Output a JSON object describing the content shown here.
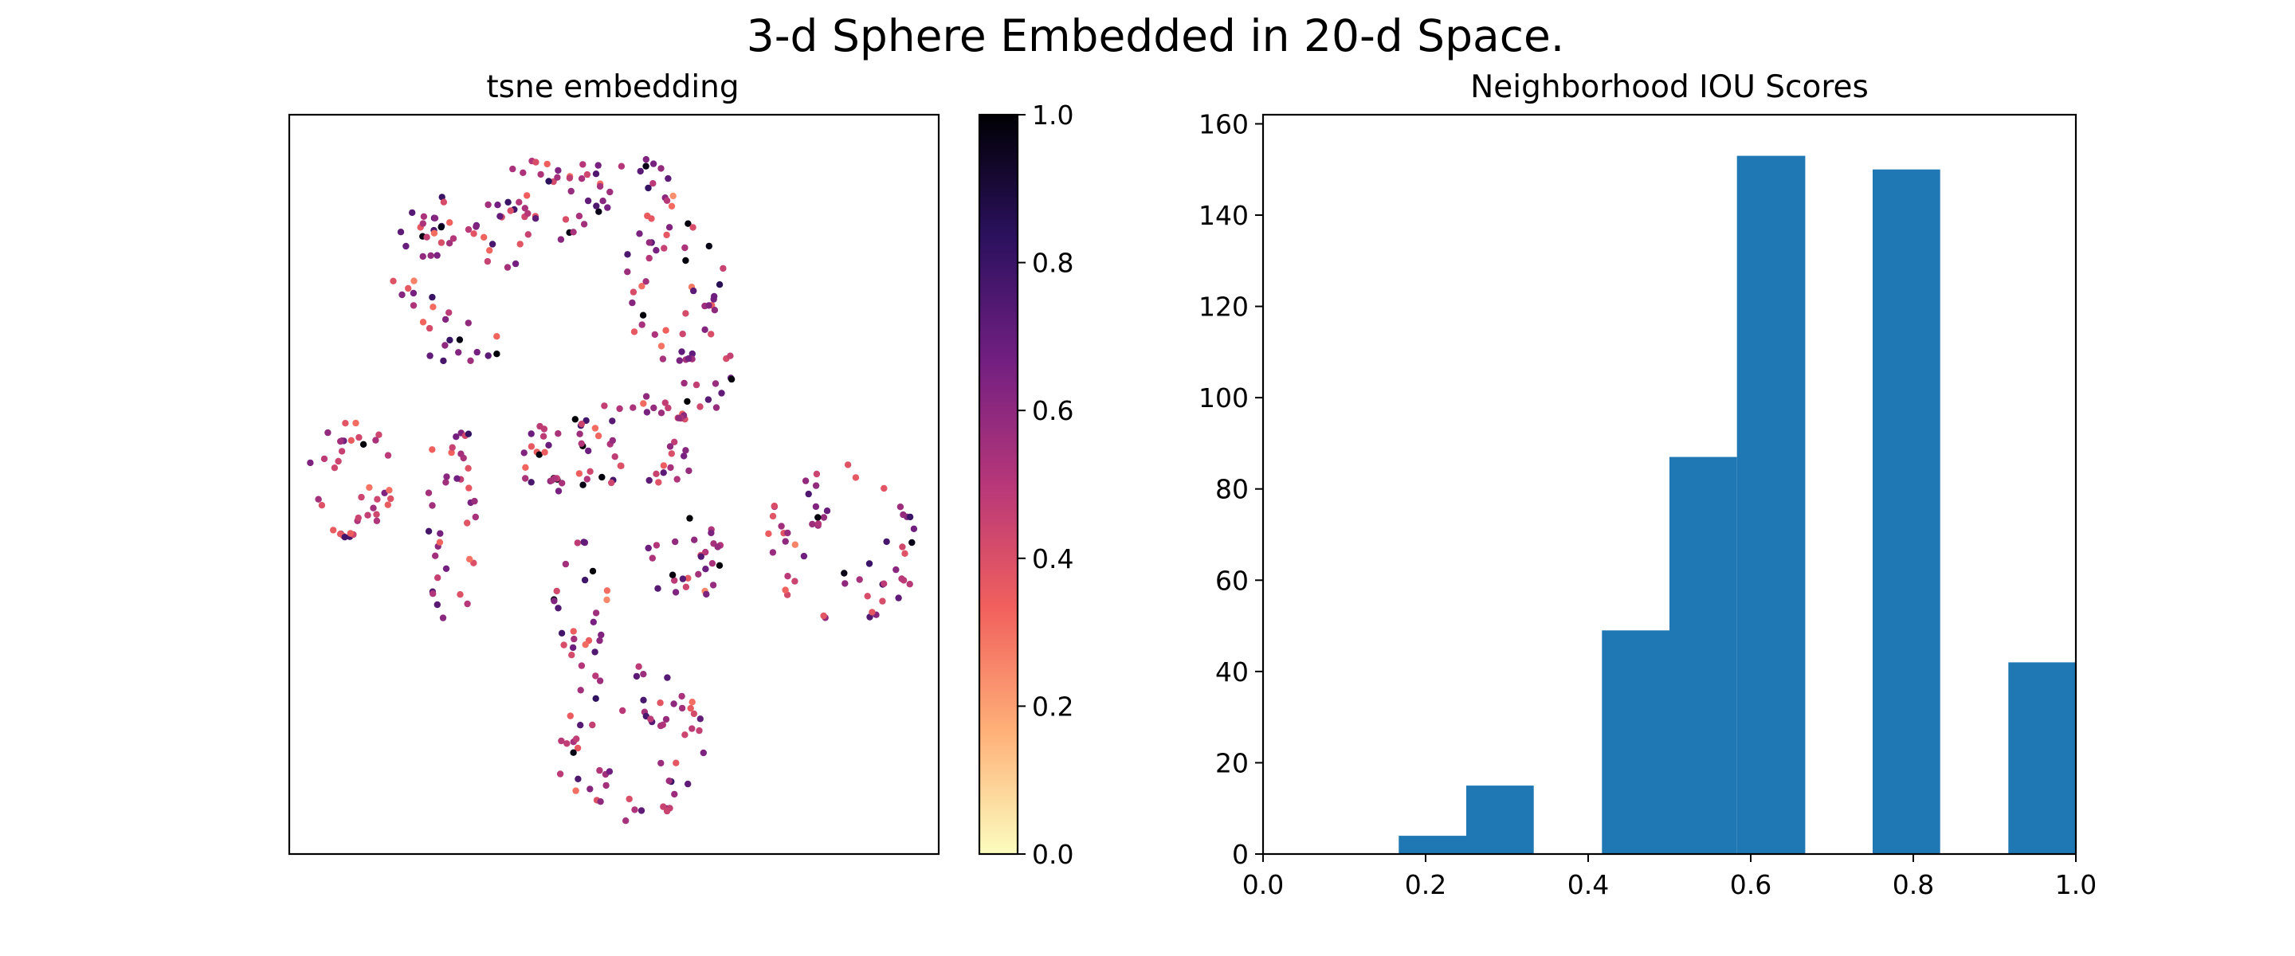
{
  "suptitle": "3-d Sphere Embedded in 20-d Space.",
  "chart_data": [
    {
      "type": "scatter",
      "title": "tsne embedding",
      "xlabel": "",
      "ylabel": "",
      "axes_ticks_visible": false,
      "point_count": 500,
      "colormap": "magma_r",
      "colorbar": {
        "range": [
          0.0,
          1.0
        ],
        "ticks": [
          "0.0",
          "0.2",
          "0.4",
          "0.6",
          "0.8",
          "1.0"
        ],
        "stops": [
          "#fcfdbf",
          "#feb078",
          "#f1605d",
          "#b73779",
          "#721f81",
          "#2c115f",
          "#000004"
        ]
      },
      "note": "Point coordinates (arbitrary t-SNE units) are not readable from the figure; clusters are approximated."
    },
    {
      "type": "histogram",
      "title": "Neighborhood IOU Scores",
      "xlabel": "",
      "ylabel": "",
      "xlim": [
        0.0,
        1.0
      ],
      "ylim": [
        0,
        162
      ],
      "xticks": [
        "0.0",
        "0.2",
        "0.4",
        "0.6",
        "0.8",
        "1.0"
      ],
      "yticks": [
        "0",
        "20",
        "40",
        "60",
        "80",
        "100",
        "120",
        "140",
        "160"
      ],
      "bar_color": "#1f77b4",
      "bins": [
        {
          "x0": 0.0,
          "x1": 0.083,
          "count": 0
        },
        {
          "x0": 0.083,
          "x1": 0.167,
          "count": 0
        },
        {
          "x0": 0.167,
          "x1": 0.25,
          "count": 4
        },
        {
          "x0": 0.25,
          "x1": 0.333,
          "count": 15
        },
        {
          "x0": 0.333,
          "x1": 0.417,
          "count": 0
        },
        {
          "x0": 0.417,
          "x1": 0.5,
          "count": 49
        },
        {
          "x0": 0.5,
          "x1": 0.583,
          "count": 87
        },
        {
          "x0": 0.583,
          "x1": 0.667,
          "count": 153
        },
        {
          "x0": 0.667,
          "x1": 0.75,
          "count": 0
        },
        {
          "x0": 0.75,
          "x1": 0.833,
          "count": 150
        },
        {
          "x0": 0.833,
          "x1": 0.917,
          "count": 0
        },
        {
          "x0": 0.917,
          "x1": 1.0,
          "count": 42
        }
      ]
    }
  ]
}
